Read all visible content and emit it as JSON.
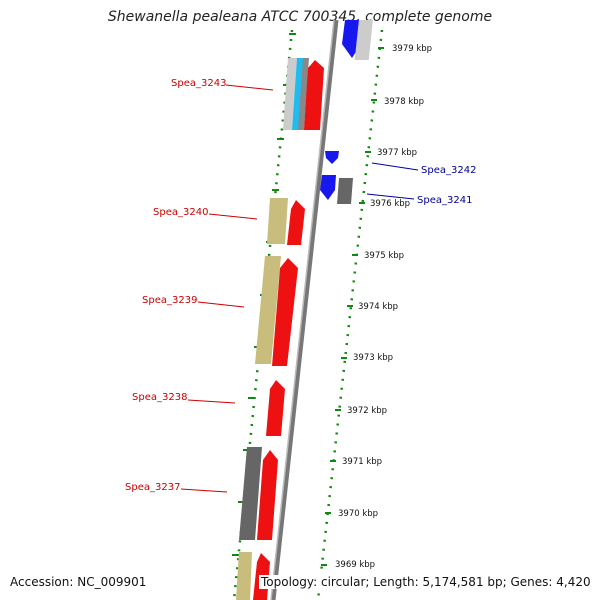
{
  "title": "Shewanella pealeana ATCC 700345, complete genome",
  "footer": {
    "accession": "Accession: NC_009901",
    "topology": "Topology: circular; Length: 5,174,581 bp; Genes: 4,420"
  },
  "scale_labels": [
    "3979 kbp",
    "3978 kbp",
    "3977 kbp",
    "3976 kbp",
    "3975 kbp",
    "3974 kbp",
    "3973 kbp",
    "3972 kbp",
    "3971 kbp",
    "3970 kbp",
    "3969 kbp"
  ],
  "gene_labels": {
    "left": [
      "Spea_3243",
      "Spea_3240",
      "Spea_3239",
      "Spea_3238",
      "Spea_3237"
    ],
    "right": [
      "Spea_3242",
      "Spea_3241"
    ]
  },
  "colors": {
    "forward_cds": "#ee1111",
    "reverse_cds": "#1818ee",
    "other_feature": "#c8bd7c",
    "gray_feature": "#666666",
    "light_gray_feature": "#cccccc",
    "cyan_feature": "#22bbee",
    "left_label": "#cc0000",
    "right_label": "#000099",
    "dotted_ring": "#118811"
  }
}
